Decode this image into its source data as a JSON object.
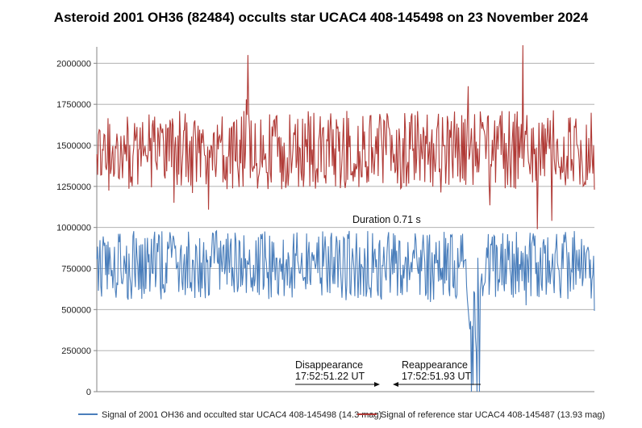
{
  "chart_data": {
    "type": "line",
    "title": "Asteroid 2001 OH36 (82484) occults star UCAC4 408-145498 on 23 November 2024",
    "xlabel": "",
    "ylabel": "",
    "ylim": [
      0,
      2100000
    ],
    "yticks": [
      0,
      250000,
      500000,
      750000,
      1000000,
      1250000,
      1500000,
      1750000,
      2000000
    ],
    "ytick_labels": [
      "0",
      "250000",
      "500000",
      "750000",
      "1000000",
      "1250000",
      "1500000",
      "1750000",
      "2000000"
    ],
    "grid": "horizontal",
    "legend_position": "bottom",
    "n_points": 620,
    "event_window": [
      461,
      482
    ],
    "series": [
      {
        "name": "Signal of 2001 OH36 and occulted star UCAC4 408-145498 (14.3 mag)",
        "color": "#4a7ebb",
        "mean": 770000,
        "range": [
          440000,
          1020000
        ],
        "drops_to": 0
      },
      {
        "name": "Signal of reference star UCAC4 408-145487 (13.93 mag)",
        "color": "#b03a36",
        "mean": 1470000,
        "range": [
          990000,
          2110000
        ]
      }
    ],
    "annotations": [
      {
        "text": "Duration 0.71 s"
      },
      {
        "text": "Disappearance"
      },
      {
        "text": "17:52:51.22 UT"
      },
      {
        "text": "Reappearance"
      },
      {
        "text": "17:52:51.93 UT"
      }
    ]
  }
}
